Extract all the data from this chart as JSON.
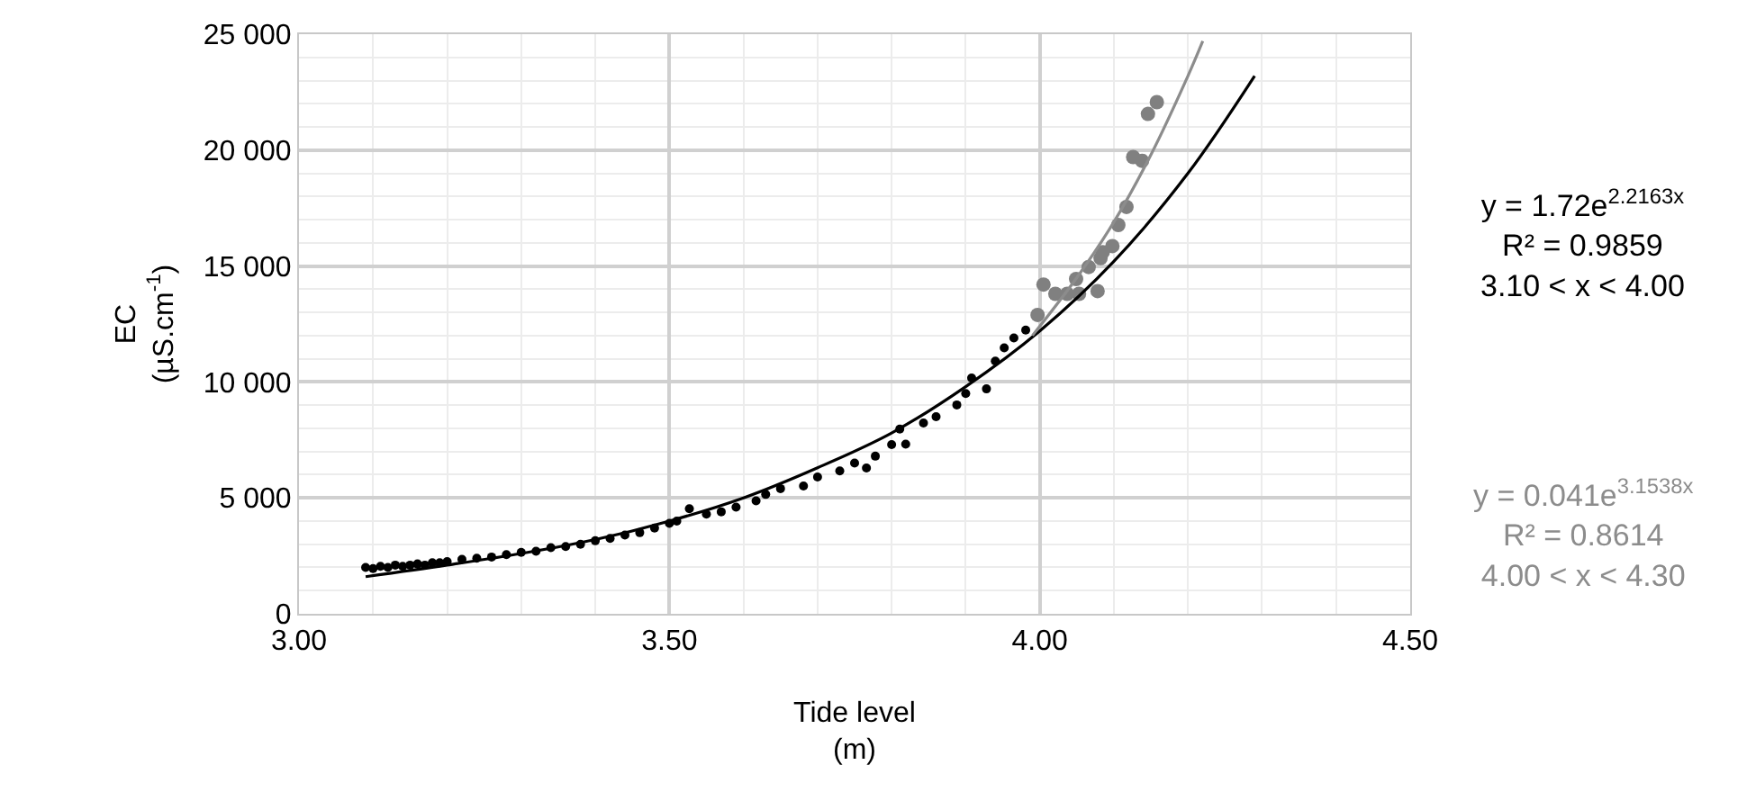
{
  "chart_data": {
    "type": "scatter",
    "xlabel": "Tide level\n(m)",
    "ylabel": "EC\n(µS.cm$^{-1}$)",
    "xlim": [
      3.0,
      4.5
    ],
    "xticks": [
      {
        "value": 3.0,
        "label": "3.00"
      },
      {
        "value": 3.5,
        "label": "3.50"
      },
      {
        "value": 4.0,
        "label": "4.00"
      },
      {
        "value": 4.5,
        "label": "4.50"
      }
    ],
    "ylim": [
      0,
      25000
    ],
    "yticks": [
      0,
      {
        "value": 5000,
        "label": "5 000"
      },
      {
        "value": 10000,
        "label": "10 000"
      },
      {
        "value": 15000,
        "label": "15 000"
      },
      {
        "value": 20000,
        "label": "20 000"
      },
      {
        "value": 25000,
        "label": "25 000"
      }
    ],
    "grid": true,
    "marker": "circle",
    "series": [
      {
        "color": "#000000",
        "x": [
          3.09,
          3.1,
          3.11,
          3.12,
          3.13,
          3.14,
          3.15,
          3.16,
          3.17,
          3.18,
          3.19,
          3.2,
          3.22,
          3.24,
          3.26,
          3.28,
          3.3,
          3.32,
          3.34,
          3.36,
          3.38,
          3.4,
          3.42,
          3.44,
          3.46,
          3.48,
          3.5,
          3.51,
          3.527,
          3.55,
          3.57,
          3.59,
          3.617,
          3.63,
          3.65,
          3.681,
          3.7,
          3.73,
          3.75,
          3.766,
          3.778,
          3.8,
          3.811,
          3.819,
          3.843,
          3.86,
          3.888,
          3.9,
          3.908,
          3.928,
          3.94,
          3.952,
          3.965,
          3.981
        ],
        "values": [
          2000,
          1950,
          2050,
          2000,
          2100,
          2050,
          2100,
          2150,
          2100,
          2200,
          2200,
          2250,
          2350,
          2400,
          2450,
          2550,
          2650,
          2700,
          2850,
          2900,
          3000,
          3150,
          3250,
          3400,
          3500,
          3700,
          3900,
          4000,
          4530,
          4300,
          4400,
          4600,
          4870,
          5150,
          5400,
          5510,
          5900,
          6160,
          6500,
          6290,
          6800,
          7300,
          7970,
          7320,
          8230,
          8500,
          9010,
          9500,
          10170,
          9700,
          10900,
          11470,
          11900,
          12240
        ]
      },
      {
        "color": "#808080",
        "x": [
          3.997,
          4.005,
          4.021,
          4.037,
          4.049,
          4.053,
          4.066,
          4.078,
          4.082,
          4.085,
          4.098,
          4.106,
          4.117,
          4.126,
          4.138,
          4.146,
          4.158
        ],
        "values": [
          12890,
          14200,
          13800,
          13800,
          14440,
          13800,
          14960,
          13920,
          15340,
          15600,
          15860,
          16770,
          17550,
          19700,
          19540,
          21560,
          22070
        ]
      },
      {
        "type": "line",
        "marker": "none",
        "color": "#000000",
        "x": [
          3.09,
          3.2,
          3.3,
          3.4,
          3.5,
          3.6,
          3.7,
          3.8,
          3.9,
          4.0,
          4.1,
          4.2,
          4.29
        ],
        "values": [
          1600,
          2100,
          2600,
          3200,
          4000,
          5000,
          6300,
          7800,
          9800,
          12200,
          15200,
          19000,
          23200
        ]
      },
      {
        "type": "line",
        "marker": "none",
        "color": "#8c8c8c",
        "x": [
          3.99,
          4.05,
          4.1,
          4.15,
          4.2,
          4.22
        ],
        "values": [
          12000,
          14500,
          16900,
          19800,
          23200,
          24700
        ]
      }
    ],
    "annotations": [
      "y = 1.72e$^{2.2163x}$\nR² = 0.9859\n3.10 < x < 4.00",
      "y = 0.041e$^{3.1538x}$\nR² = 0.8614\n4.00 < x < 4.30"
    ]
  }
}
